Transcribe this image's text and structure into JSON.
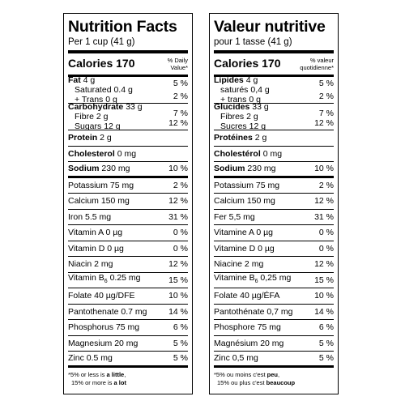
{
  "en": {
    "title": "Nutrition Facts",
    "serving": "Per 1 cup (41 g)",
    "calories_label": "Calories",
    "calories_value": "170",
    "dv_line1": "% Daily",
    "dv_line2": "Value*",
    "fat": {
      "label": "Fat",
      "amount": "4 g",
      "pct": "5 %"
    },
    "saturated": {
      "label": "Saturated",
      "amount": "0.4 g"
    },
    "trans": {
      "label": "+ Trans",
      "amount": "0 g"
    },
    "sat_trans_pct": "2 %",
    "carbohydrate": {
      "label": "Carbohydrate",
      "amount": "33 g"
    },
    "fibre": {
      "label": "Fibre",
      "amount": "2 g",
      "pct": "7 %"
    },
    "sugars": {
      "label": "Sugars",
      "amount": "12 g",
      "pct": "12 %"
    },
    "protein": {
      "label": "Protein",
      "amount": "2 g"
    },
    "cholesterol": {
      "label": "Cholesterol",
      "amount": "0 mg"
    },
    "sodium": {
      "label": "Sodium",
      "amount": "230 mg",
      "pct": "10 %"
    },
    "potassium": {
      "text": "Potassium 75 mg",
      "pct": "2 %"
    },
    "calcium": {
      "text": "Calcium 150 mg",
      "pct": "12 %"
    },
    "iron": {
      "text": "Iron 5.5 mg",
      "pct": "31 %"
    },
    "vitamin_a": {
      "text": "Vitamin A 0 µg",
      "pct": "0 %"
    },
    "vitamin_d": {
      "text": "Vitamin D 0 µg",
      "pct": "0 %"
    },
    "niacin": {
      "text": "Niacin 2 mg",
      "pct": "12 %"
    },
    "vitamin_b6": {
      "prefix": "Vitamin B",
      "sub": "6",
      "amount": "0.25 mg",
      "pct": "15 %"
    },
    "folate": {
      "text": "Folate 40 µg/DFE",
      "pct": "10 %"
    },
    "pantothenate": {
      "text": "Pantothenate 0.7 mg",
      "pct": "14 %"
    },
    "phosphorus": {
      "text": "Phosphorus 75 mg",
      "pct": "6 %"
    },
    "magnesium": {
      "text": "Magnesium 20 mg",
      "pct": "5 %"
    },
    "zinc": {
      "text": "Zinc 0.5 mg",
      "pct": "5 %"
    },
    "foot1_pre": "*5% or less is ",
    "foot1_bold": "a little",
    "foot1_post": ",",
    "foot2_pre": "15% or more is ",
    "foot2_bold": "a lot"
  },
  "fr": {
    "title": "Valeur nutritive",
    "serving": "pour 1 tasse (41 g)",
    "calories_label": "Calories",
    "calories_value": "170",
    "dv_line1": "% valeur",
    "dv_line2": "quotidienne*",
    "fat": {
      "label": "Lipides",
      "amount": "4 g",
      "pct": "5 %"
    },
    "saturated": {
      "label": "saturés",
      "amount": "0,4 g"
    },
    "trans": {
      "label": "+ trans",
      "amount": "0 g"
    },
    "sat_trans_pct": "2 %",
    "carbohydrate": {
      "label": "Glucides",
      "amount": "33 g"
    },
    "fibre": {
      "label": "Fibres",
      "amount": "2 g",
      "pct": "7 %"
    },
    "sugars": {
      "label": "Sucres",
      "amount": "12 g",
      "pct": "12 %"
    },
    "protein": {
      "label": "Protéines",
      "amount": "2 g"
    },
    "cholesterol": {
      "label": "Cholestérol",
      "amount": "0 mg"
    },
    "sodium": {
      "label": "Sodium",
      "amount": "230 mg",
      "pct": "10 %"
    },
    "potassium": {
      "text": "Potassium 75 mg",
      "pct": "2 %"
    },
    "calcium": {
      "text": "Calcium 150 mg",
      "pct": "12 %"
    },
    "iron": {
      "text": "Fer 5,5 mg",
      "pct": "31 %"
    },
    "vitamin_a": {
      "text": "Vitamine A 0 µg",
      "pct": "0 %"
    },
    "vitamin_d": {
      "text": "Vitamine D 0 µg",
      "pct": "0 %"
    },
    "niacin": {
      "text": "Niacine 2 mg",
      "pct": "12 %"
    },
    "vitamin_b6": {
      "prefix": "Vitamine B",
      "sub": "6",
      "amount": "0,25 mg",
      "pct": "15 %"
    },
    "folate": {
      "text": "Folate 40 µg/ÉFA",
      "pct": "10 %"
    },
    "pantothenate": {
      "text": "Pantothénate 0,7 mg",
      "pct": "14 %"
    },
    "phosphorus": {
      "text": "Phosphore 75 mg",
      "pct": "6 %"
    },
    "magnesium": {
      "text": "Magnésium 20 mg",
      "pct": "5 %"
    },
    "zinc": {
      "text": "Zinc 0,5 mg",
      "pct": "5 %"
    },
    "foot1_pre": "*5% ou moins c'est ",
    "foot1_bold": "peu",
    "foot1_post": ",",
    "foot2_pre": "15% ou plus c'est ",
    "foot2_bold": "beaucoup"
  }
}
